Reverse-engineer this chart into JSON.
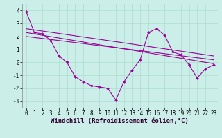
{
  "title": "Windchill (Refroidissement éolien,°C)",
  "bg_color": "#cceee8",
  "line_color": "#990099",
  "x_hours": [
    0,
    1,
    2,
    3,
    4,
    5,
    6,
    7,
    8,
    9,
    10,
    11,
    12,
    13,
    14,
    15,
    16,
    17,
    18,
    19,
    20,
    21,
    22,
    23
  ],
  "series1": [
    3.9,
    2.3,
    2.2,
    1.7,
    0.5,
    0.0,
    -1.1,
    -1.5,
    -1.8,
    -1.9,
    -2.0,
    -2.9,
    -1.5,
    -0.6,
    0.2,
    2.3,
    2.6,
    2.1,
    0.8,
    0.6,
    -0.2,
    -1.2,
    -0.5,
    -0.2
  ],
  "series2_x": [
    0,
    23
  ],
  "series2_y": [
    2.3,
    -0.1
  ],
  "series3_x": [
    0,
    23
  ],
  "series3_y": [
    2.0,
    0.2
  ],
  "series4_x": [
    0,
    23
  ],
  "series4_y": [
    2.6,
    0.5
  ],
  "ylim": [
    -3.5,
    4.5
  ],
  "xlim": [
    -0.5,
    23.5
  ],
  "yticks": [
    -3,
    -2,
    -1,
    0,
    1,
    2,
    3,
    4
  ],
  "xticks": [
    0,
    1,
    2,
    3,
    4,
    5,
    6,
    7,
    8,
    9,
    10,
    11,
    12,
    13,
    14,
    15,
    16,
    17,
    18,
    19,
    20,
    21,
    22,
    23
  ],
  "grid_color": "#aaddcc",
  "tick_fontsize": 5.5,
  "xlabel_fontsize": 6.5
}
